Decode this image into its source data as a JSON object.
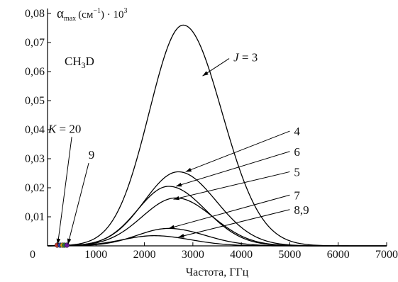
{
  "chart_data": {
    "type": "line",
    "title": "",
    "ylabel": "",
    "xlabel": "Частота, ГГц",
    "xlim": [
      0,
      7000
    ],
    "ylim": [
      0,
      0.08
    ],
    "x_ticks": [
      1000,
      2000,
      3000,
      4000,
      5000,
      6000,
      7000
    ],
    "x_tick_labels": [
      "1000",
      "2000",
      "3000",
      "4000",
      "5000",
      "6000",
      "7000"
    ],
    "x_origin_label": "0",
    "y_ticks": [
      0.01,
      0.02,
      0.03,
      0.04,
      0.05,
      0.06,
      0.07,
      0.08
    ],
    "y_tick_labels": [
      "0,01",
      "0,02",
      "0,03",
      "0,04",
      "0,05",
      "0,06",
      "0,07",
      "0,08"
    ],
    "y_unit": {
      "symbol": "α",
      "sub": "max",
      "unit_open": "(см",
      "unit_exp": "−1",
      "unit_close": ") · 10",
      "power": "3"
    },
    "molecule": {
      "base": "CH",
      "sub": "3",
      "rest": "D"
    },
    "series": [
      {
        "id": "j3",
        "peak_x": 2800,
        "peak_y": 0.076,
        "sigma_left": 700,
        "sigma_right": 800
      },
      {
        "id": "j4",
        "peak_x": 2700,
        "peak_y": 0.0255,
        "sigma_left": 700,
        "sigma_right": 780
      },
      {
        "id": "j6",
        "peak_x": 2500,
        "peak_y": 0.0205,
        "sigma_left": 640,
        "sigma_right": 760
      },
      {
        "id": "j5",
        "peak_x": 2650,
        "peak_y": 0.0165,
        "sigma_left": 700,
        "sigma_right": 760
      },
      {
        "id": "j7",
        "peak_x": 2500,
        "peak_y": 0.006,
        "sigma_left": 650,
        "sigma_right": 750
      },
      {
        "id": "j89",
        "peak_x": 2200,
        "peak_y": 0.0035,
        "sigma_left": 650,
        "sigma_right": 750
      }
    ],
    "labels": [
      {
        "id": "j3",
        "prefix": "J",
        "text": " = 3",
        "tx": 3750,
        "ty": 0.0645,
        "ax": 3200,
        "ay": 0.0585
      },
      {
        "id": "j4",
        "prefix": "",
        "text": "4",
        "tx": 5000,
        "ty": 0.0395,
        "ax": 2850,
        "ay": 0.0255
      },
      {
        "id": "j6",
        "prefix": "",
        "text": "6",
        "tx": 5000,
        "ty": 0.0325,
        "ax": 2650,
        "ay": 0.0205
      },
      {
        "id": "j5",
        "prefix": "",
        "text": "5",
        "tx": 5000,
        "ty": 0.0255,
        "ax": 2600,
        "ay": 0.016
      },
      {
        "id": "j7",
        "prefix": "",
        "text": "7",
        "tx": 5000,
        "ty": 0.0175,
        "ax": 2500,
        "ay": 0.006
      },
      {
        "id": "j89",
        "prefix": "",
        "text": "8,9",
        "tx": 5000,
        "ty": 0.0125,
        "ax": 2700,
        "ay": 0.003
      }
    ],
    "k_labels": [
      {
        "prefix": "K",
        "text": " = 20",
        "tx": 500,
        "ty": 0.0375,
        "ax": 210,
        "ay": 0.0005
      },
      {
        "prefix": "",
        "text": "9",
        "tx": 850,
        "ty": 0.0285,
        "ax": 420,
        "ay": 0.0005
      }
    ],
    "k_markers": [
      {
        "x": 200,
        "color": "#c0392b"
      },
      {
        "x": 260,
        "color": "#2c3e9f"
      },
      {
        "x": 310,
        "color": "#d4a017"
      },
      {
        "x": 350,
        "color": "#2e7d32"
      },
      {
        "x": 400,
        "color": "#6a1b9a"
      }
    ]
  }
}
